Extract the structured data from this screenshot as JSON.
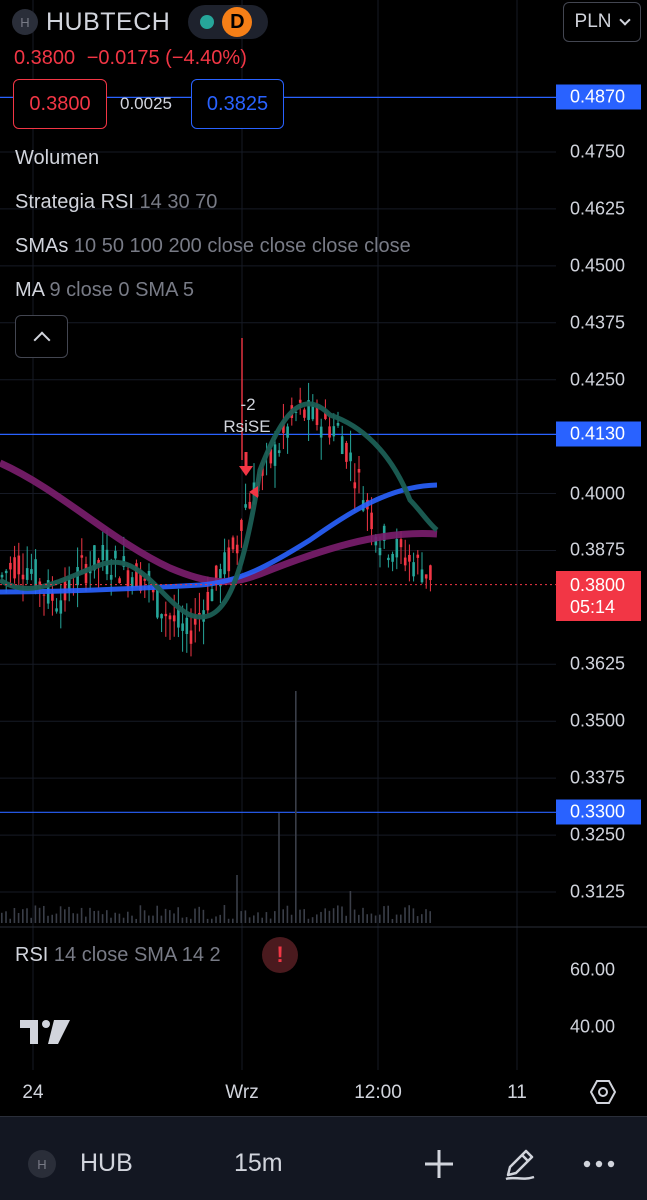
{
  "header": {
    "exchange_badge": "H",
    "symbol_title": "HUBTECH",
    "status_color": "#26a69a",
    "delay_badge": "D",
    "currency": "PLN"
  },
  "quote": {
    "last": "0.3800",
    "change": "−0.0175",
    "change_pct": "(−4.40%)",
    "bid": "0.3800",
    "spread": "0.0025",
    "ask": "0.3825"
  },
  "legend": {
    "volume": {
      "name": "Wolumen"
    },
    "strategy": {
      "name": "Strategia RSI",
      "params": "14 30 70"
    },
    "smas": {
      "name": "SMAs",
      "params": "10 50 100 200 close close close close"
    },
    "ma": {
      "name": "MA",
      "params": "9 close 0 SMA 5"
    }
  },
  "price_axis": {
    "ticks": [
      "0.4750",
      "0.4625",
      "0.4500",
      "0.4375",
      "0.4250",
      "0.4000",
      "0.3875",
      "0.3625",
      "0.3500",
      "0.3375",
      "0.3250",
      "0.3125"
    ],
    "tick_values": [
      0.475,
      0.4625,
      0.45,
      0.4375,
      0.425,
      0.4,
      0.3875,
      0.3625,
      0.35,
      0.3375,
      0.325,
      0.3125
    ],
    "horizontal_lines": [
      {
        "label": "0.4870",
        "value": 0.487
      },
      {
        "label": "0.4130",
        "value": 0.413
      },
      {
        "label": "0.3300",
        "value": 0.33
      }
    ],
    "current_price": "0.3800",
    "current_value": 0.38,
    "countdown": "05:14"
  },
  "signal": {
    "qty": "-2",
    "name": "RsiSE"
  },
  "rsi_pane": {
    "legend_name": "RSI",
    "legend_params": "14 close SMA 14 2",
    "warning": "!",
    "ticks": [
      "60.00",
      "40.00"
    ]
  },
  "time_axis": {
    "ticks": [
      "24",
      "Wrz",
      "12:00",
      "11"
    ]
  },
  "bottom_bar": {
    "badge": "H",
    "symbol": "HUB",
    "interval": "15m"
  },
  "colors": {
    "up": "#26a69a",
    "down": "#f23645",
    "sma_green": "#1b5e54",
    "sma_blue": "#2962ff",
    "sma_purple": "#7b1e6e",
    "hline": "#2962ff"
  }
}
